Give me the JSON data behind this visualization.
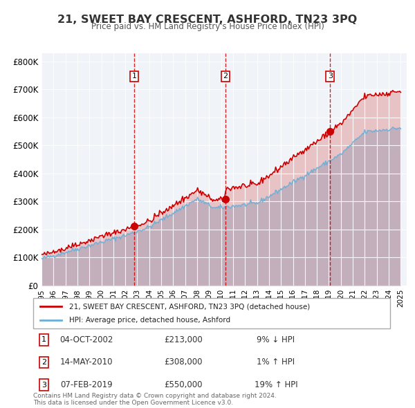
{
  "title": "21, SWEET BAY CRESCENT, ASHFORD, TN23 3PQ",
  "subtitle": "Price paid vs. HM Land Registry's House Price Index (HPI)",
  "ylabel": "",
  "xlim": [
    1995.0,
    2025.5
  ],
  "ylim": [
    0,
    830000
  ],
  "yticks": [
    0,
    100000,
    200000,
    300000,
    400000,
    500000,
    600000,
    700000,
    800000
  ],
  "ytick_labels": [
    "£0",
    "£100K",
    "£200K",
    "£300K",
    "£400K",
    "£500K",
    "£600K",
    "£700K",
    "£800K"
  ],
  "hpi_color": "#6baed6",
  "price_color": "#cc0000",
  "sale_dot_color": "#cc0000",
  "vline_color": "#cc0000",
  "transactions": [
    {
      "num": 1,
      "date": 2002.75,
      "price": 213000,
      "label": "1",
      "pct": "9%",
      "dir": "↓",
      "date_str": "04-OCT-2002",
      "price_str": "£213,000"
    },
    {
      "num": 2,
      "date": 2010.37,
      "price": 308000,
      "label": "2",
      "pct": "1%",
      "dir": "↑",
      "date_str": "14-MAY-2010",
      "price_str": "£308,000"
    },
    {
      "num": 3,
      "date": 2019.1,
      "price": 550000,
      "label": "3",
      "pct": "19%",
      "dir": "↑",
      "date_str": "07-FEB-2019",
      "price_str": "£550,000"
    }
  ],
  "legend_price_label": "21, SWEET BAY CRESCENT, ASHFORD, TN23 3PQ (detached house)",
  "legend_hpi_label": "HPI: Average price, detached house, Ashford",
  "footnote": "Contains HM Land Registry data © Crown copyright and database right 2024.\nThis data is licensed under the Open Government Licence v3.0.",
  "background_color": "#f0f4f8",
  "plot_bg_color": "#f0f4f8"
}
